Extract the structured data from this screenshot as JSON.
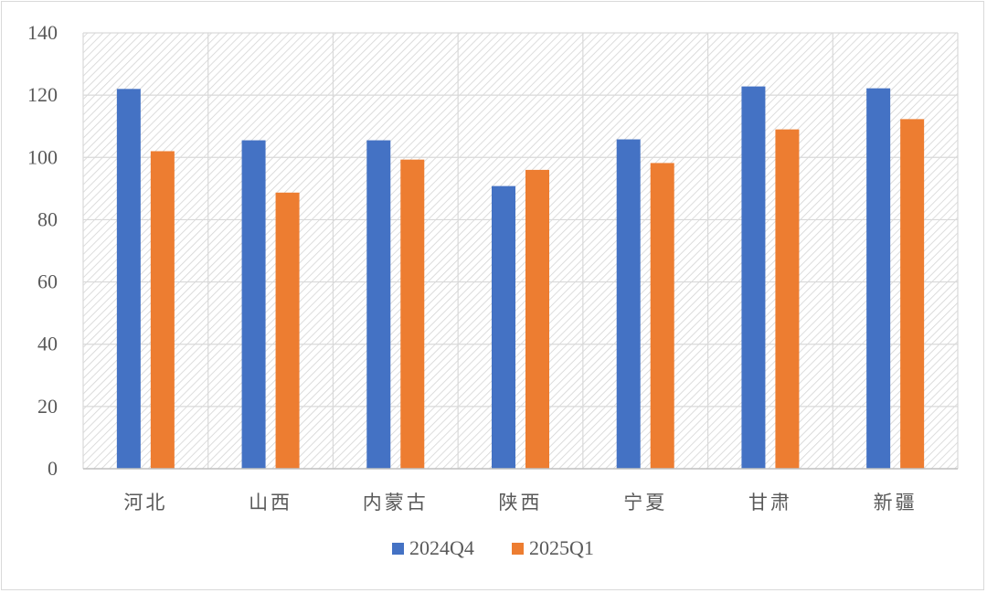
{
  "chart_data": {
    "type": "bar",
    "title": "",
    "xlabel": "",
    "ylabel": "",
    "categories": [
      "河北",
      "山西",
      "内蒙古",
      "陕西",
      "宁夏",
      "甘肃",
      "新疆"
    ],
    "series": [
      {
        "name": "2024Q4",
        "color": "#4472c4",
        "values": [
          122,
          105.5,
          105.5,
          90.8,
          105.8,
          122.8,
          122.2
        ]
      },
      {
        "name": "2025Q1",
        "color": "#ed7d31",
        "values": [
          102,
          88.7,
          99.3,
          96,
          98.2,
          109,
          112.3
        ]
      }
    ],
    "ylim": [
      0,
      140
    ],
    "yticks": [
      0,
      20,
      40,
      60,
      80,
      100,
      120,
      140
    ],
    "grid": true,
    "plot_background": "hatched",
    "legend_position": "bottom"
  }
}
